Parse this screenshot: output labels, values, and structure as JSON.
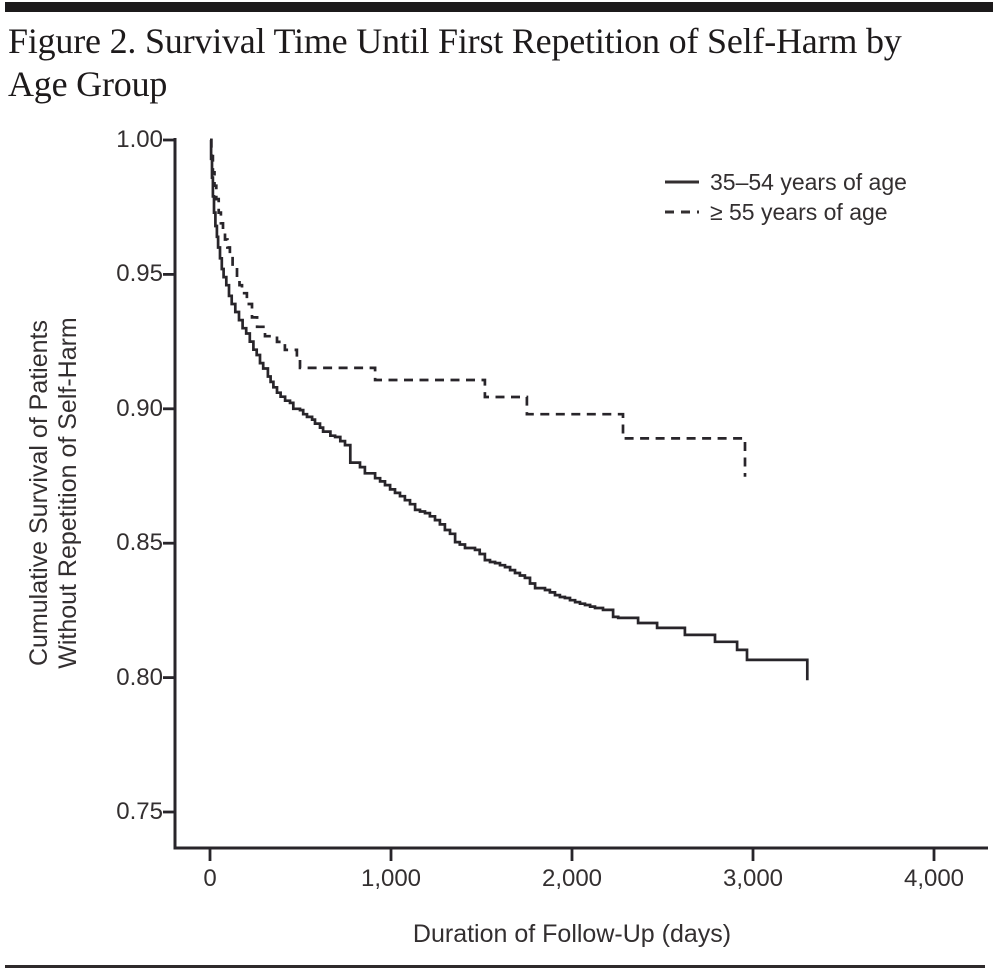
{
  "page": {
    "header": {
      "title_line1": "Figure 2. Survival Time Until First Repetition of Self-Harm by",
      "title_line2": "Age Group"
    }
  },
  "legend": {
    "items": [
      {
        "label": "35–54 years of age",
        "style": "solid"
      },
      {
        "label": "≥ 55 years of age",
        "style": "dashed"
      }
    ]
  },
  "chart_data": {
    "type": "line",
    "variant": "kaplan_meier_step",
    "title": "Figure 2. Survival Time Until First Repetition of Self-Harm by Age Group",
    "xlabel": "Duration of Follow-Up (days)",
    "ylabel": [
      "Cumulative Survival of Patients",
      "Without Repetition of Self-Harm"
    ],
    "xlim": [
      0,
      4300
    ],
    "ylim": [
      0.7365,
      1.0
    ],
    "grid": false,
    "legend_position": "top-right",
    "line_color": "#28252a",
    "x_ticks": {
      "values": [
        0,
        1000,
        2000,
        3000,
        4000
      ],
      "labels": [
        "0",
        "1,000",
        "2,000",
        "3,000",
        "4,000"
      ]
    },
    "y_ticks": {
      "values": [
        1.0,
        0.95,
        0.9,
        0.85,
        0.8,
        0.75
      ],
      "labels": [
        "1.00",
        "0.95",
        "0.90",
        "0.85",
        "0.80",
        "0.75"
      ]
    },
    "series": [
      {
        "name": "35–54 years of age",
        "style": "solid",
        "points": [
          [
            0,
            1.0
          ],
          [
            6,
            0.993
          ],
          [
            11,
            0.986
          ],
          [
            16,
            0.979
          ],
          [
            22,
            0.973
          ],
          [
            30,
            0.968
          ],
          [
            38,
            0.964
          ],
          [
            45,
            0.96
          ],
          [
            55,
            0.956
          ],
          [
            65,
            0.952
          ],
          [
            75,
            0.949
          ],
          [
            90,
            0.946
          ],
          [
            105,
            0.942
          ],
          [
            120,
            0.939
          ],
          [
            140,
            0.936
          ],
          [
            160,
            0.933
          ],
          [
            180,
            0.93
          ],
          [
            200,
            0.928
          ],
          [
            220,
            0.925
          ],
          [
            240,
            0.922
          ],
          [
            258,
            0.92
          ],
          [
            276,
            0.917
          ],
          [
            294,
            0.915
          ],
          [
            320,
            0.912
          ],
          [
            335,
            0.91
          ],
          [
            350,
            0.908
          ],
          [
            370,
            0.906
          ],
          [
            390,
            0.9045
          ],
          [
            415,
            0.903
          ],
          [
            442,
            0.9022
          ],
          [
            460,
            0.9
          ],
          [
            497,
            0.8995
          ],
          [
            515,
            0.898
          ],
          [
            536,
            0.897
          ],
          [
            564,
            0.896
          ],
          [
            580,
            0.8945
          ],
          [
            608,
            0.893
          ],
          [
            625,
            0.8915
          ],
          [
            665,
            0.89
          ],
          [
            691,
            0.8895
          ],
          [
            720,
            0.888
          ],
          [
            746,
            0.8865
          ],
          [
            775,
            0.88
          ],
          [
            829,
            0.8783
          ],
          [
            856,
            0.876
          ],
          [
            912,
            0.8742
          ],
          [
            940,
            0.873
          ],
          [
            967,
            0.8716
          ],
          [
            995,
            0.87
          ],
          [
            1022,
            0.8687
          ],
          [
            1050,
            0.8675
          ],
          [
            1077,
            0.866
          ],
          [
            1105,
            0.8645
          ],
          [
            1133,
            0.8624
          ],
          [
            1160,
            0.8618
          ],
          [
            1188,
            0.8612
          ],
          [
            1215,
            0.86
          ],
          [
            1243,
            0.8586
          ],
          [
            1270,
            0.857
          ],
          [
            1298,
            0.8549
          ],
          [
            1326,
            0.8535
          ],
          [
            1354,
            0.8504
          ],
          [
            1380,
            0.8495
          ],
          [
            1409,
            0.8482
          ],
          [
            1464,
            0.8475
          ],
          [
            1490,
            0.846
          ],
          [
            1519,
            0.8437
          ],
          [
            1547,
            0.843
          ],
          [
            1575,
            0.8426
          ],
          [
            1602,
            0.8418
          ],
          [
            1630,
            0.8411
          ],
          [
            1658,
            0.84
          ],
          [
            1685,
            0.8389
          ],
          [
            1712,
            0.838
          ],
          [
            1740,
            0.8371
          ],
          [
            1768,
            0.835
          ],
          [
            1796,
            0.8333
          ],
          [
            1851,
            0.8326
          ],
          [
            1878,
            0.8317
          ],
          [
            1906,
            0.8307
          ],
          [
            1933,
            0.83
          ],
          [
            1961,
            0.8296
          ],
          [
            1989,
            0.8288
          ],
          [
            2017,
            0.8281
          ],
          [
            2044,
            0.8275
          ],
          [
            2072,
            0.827
          ],
          [
            2100,
            0.8264
          ],
          [
            2127,
            0.8259
          ],
          [
            2171,
            0.8252
          ],
          [
            2227,
            0.8226
          ],
          [
            2255,
            0.8222
          ],
          [
            2365,
            0.8203
          ],
          [
            2470,
            0.8185
          ],
          [
            2624,
            0.8159
          ],
          [
            2790,
            0.8133
          ],
          [
            2912,
            0.8103
          ],
          [
            2967,
            0.8066
          ],
          [
            3300,
            0.8066
          ],
          [
            3300,
            0.799
          ]
        ]
      },
      {
        "name": "≥ 55 years of age",
        "style": "dashed",
        "points": [
          [
            0,
            1.0
          ],
          [
            8,
            0.994
          ],
          [
            16,
            0.988
          ],
          [
            25,
            0.983
          ],
          [
            35,
            0.978
          ],
          [
            48,
            0.973
          ],
          [
            60,
            0.969
          ],
          [
            72,
            0.966
          ],
          [
            83,
            0.963
          ],
          [
            96,
            0.96
          ],
          [
            110,
            0.957
          ],
          [
            125,
            0.953
          ],
          [
            149,
            0.949
          ],
          [
            163,
            0.946
          ],
          [
            177,
            0.943
          ],
          [
            204,
            0.939
          ],
          [
            232,
            0.934
          ],
          [
            260,
            0.9305
          ],
          [
            304,
            0.927
          ],
          [
            370,
            0.9249
          ],
          [
            414,
            0.9219
          ],
          [
            480,
            0.9193
          ],
          [
            497,
            0.9152
          ],
          [
            912,
            0.9107
          ],
          [
            1519,
            0.9044
          ],
          [
            1751,
            0.898
          ],
          [
            2282,
            0.889
          ],
          [
            2956,
            0.8747
          ]
        ]
      }
    ]
  }
}
